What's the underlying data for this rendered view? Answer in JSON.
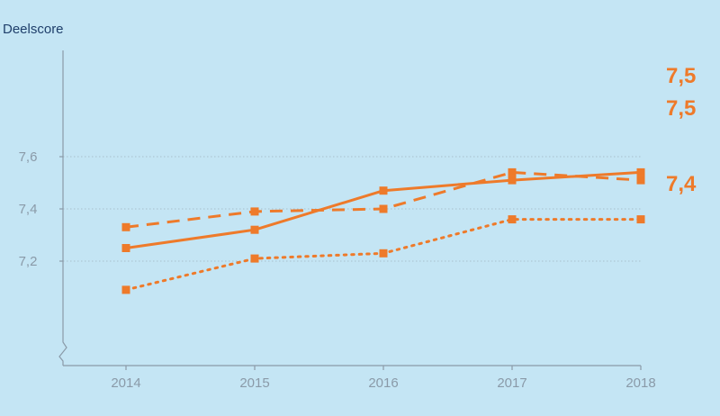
{
  "colors": {
    "background": "#c4e5f4",
    "series": "#ee7a2a",
    "axis": "#8a9aa8",
    "grid": "#a9bfcc",
    "ylabel": "#1f3f6b"
  },
  "chart_data": {
    "type": "line",
    "ylabel": "Deelscore",
    "x": [
      2014,
      2015,
      2016,
      2017,
      2018
    ],
    "x_tick_labels": [
      "2014",
      "2015",
      "2016",
      "2017",
      "2018"
    ],
    "ylim": [
      7.0,
      7.6
    ],
    "y_ticks": [
      7.2,
      7.4,
      7.6
    ],
    "y_tick_labels": [
      "7,2",
      "7,4",
      "7,6"
    ],
    "grid": "horizontal dotted",
    "series": [
      {
        "style": "solid",
        "values": [
          7.25,
          7.32,
          7.47,
          7.51,
          7.54
        ],
        "end_label": "7,5"
      },
      {
        "style": "dashed",
        "values": [
          7.33,
          7.39,
          7.4,
          7.54,
          7.51
        ],
        "end_label": "7,5"
      },
      {
        "style": "dotted",
        "values": [
          7.09,
          7.21,
          7.23,
          7.36,
          7.36
        ],
        "end_label": "7,4"
      }
    ]
  }
}
